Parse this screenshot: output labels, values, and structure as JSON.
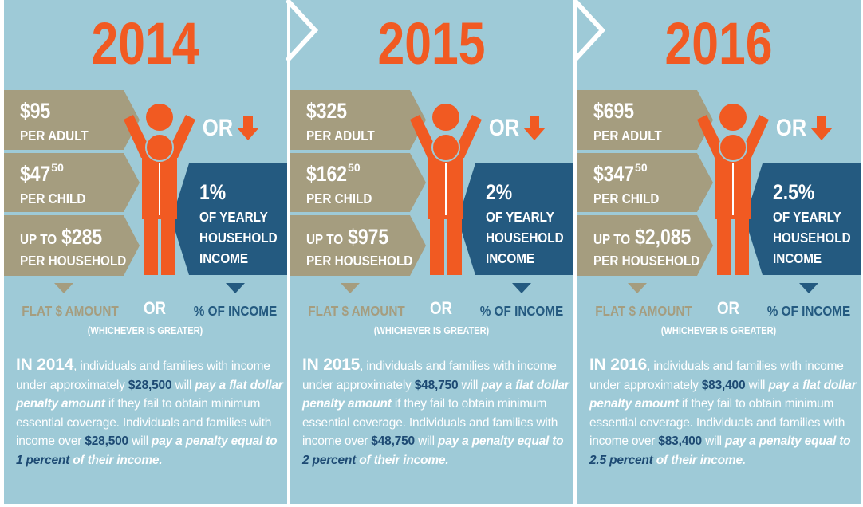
{
  "panels": [
    {
      "year": "2014",
      "adult": {
        "amount": "$95",
        "label": "PER ADULT"
      },
      "child": {
        "amount": "$47",
        "cents": "50",
        "label": "PER CHILD"
      },
      "household": {
        "prefix": "UP TO",
        "amount": "$285",
        "label": "PER HOUSEHOLD"
      },
      "or_top": "OR",
      "income": {
        "percent": "1%",
        "lines": [
          "OF YEARLY",
          "HOUSEHOLD",
          "INCOME"
        ]
      },
      "flat_label": "FLAT $ AMOUNT",
      "or_middle": "OR",
      "percent_label": "% OF INCOME",
      "note": "(WHICHEVER IS GREATER)",
      "paragraph": [
        {
          "text": "IN 2014",
          "style": "lead"
        },
        {
          "text": ", individuals and families with income under approximately ",
          "style": "normal"
        },
        {
          "text": "$28,500",
          "style": "highlight"
        },
        {
          "text": " will ",
          "style": "normal"
        },
        {
          "text": "pay a flat dollar penalty amount",
          "style": "emphasis"
        },
        {
          "text": " if they fail to obtain minimum essential coverage. Individuals and families with income over ",
          "style": "normal"
        },
        {
          "text": "$28,500",
          "style": "highlight"
        },
        {
          "text": " will ",
          "style": "normal"
        },
        {
          "text": "pay a penalty equal to ",
          "style": "emphasis"
        },
        {
          "text": "1 percent",
          "style": "highlight-emphasis"
        },
        {
          "text": " of their income.",
          "style": "emphasis"
        }
      ]
    },
    {
      "year": "2015",
      "adult": {
        "amount": "$325",
        "label": "PER ADULT"
      },
      "child": {
        "amount": "$162",
        "cents": "50",
        "label": "PER CHILD"
      },
      "household": {
        "prefix": "UP TO",
        "amount": "$975",
        "label": "PER HOUSEHOLD"
      },
      "or_top": "OR",
      "income": {
        "percent": "2%",
        "lines": [
          "OF YEARLY",
          "HOUSEHOLD",
          "INCOME"
        ]
      },
      "flat_label": "FLAT $ AMOUNT",
      "or_middle": "OR",
      "percent_label": "% OF INCOME",
      "note": "(WHICHEVER IS GREATER)",
      "paragraph": [
        {
          "text": "IN 2015",
          "style": "lead"
        },
        {
          "text": ", individuals and families with income under approximately ",
          "style": "normal"
        },
        {
          "text": "$48,750",
          "style": "highlight"
        },
        {
          "text": " will ",
          "style": "normal"
        },
        {
          "text": "pay a flat dollar penalty amount",
          "style": "emphasis"
        },
        {
          "text": " if they fail to obtain minimum essential coverage. Individuals and families with income over ",
          "style": "normal"
        },
        {
          "text": "$48,750",
          "style": "highlight"
        },
        {
          "text": " will ",
          "style": "normal"
        },
        {
          "text": "pay a penalty equal to ",
          "style": "emphasis"
        },
        {
          "text": "2 percent",
          "style": "highlight-emphasis"
        },
        {
          "text": " of their income.",
          "style": "emphasis"
        }
      ]
    },
    {
      "year": "2016",
      "adult": {
        "amount": "$695",
        "label": "PER ADULT"
      },
      "child": {
        "amount": "$347",
        "cents": "50",
        "label": "PER CHILD"
      },
      "household": {
        "prefix": "UP TO",
        "amount": "$2,085",
        "label": "PER HOUSEHOLD"
      },
      "or_top": "OR",
      "income": {
        "percent": "2.5%",
        "lines": [
          "OF YEARLY",
          "HOUSEHOLD",
          "INCOME"
        ]
      },
      "flat_label": "FLAT $ AMOUNT",
      "or_middle": "OR",
      "percent_label": "% OF INCOME",
      "note": "(WHICHEVER IS GREATER)",
      "paragraph": [
        {
          "text": "IN 2016",
          "style": "lead"
        },
        {
          "text": ", individuals and families with income under approximately ",
          "style": "normal"
        },
        {
          "text": "$83,400",
          "style": "highlight"
        },
        {
          "text": " will ",
          "style": "normal"
        },
        {
          "text": "pay a flat dollar penalty amount",
          "style": "emphasis"
        },
        {
          "text": " if they fail to obtain minimum essential coverage. Individuals and families with income over ",
          "style": "normal"
        },
        {
          "text": "$83,400",
          "style": "highlight"
        },
        {
          "text": " will ",
          "style": "normal"
        },
        {
          "text": "pay a penalty equal to ",
          "style": "emphasis"
        },
        {
          "text": "2.5 percent",
          "style": "highlight-emphasis"
        },
        {
          "text": " of their income.",
          "style": "emphasis"
        }
      ]
    }
  ]
}
